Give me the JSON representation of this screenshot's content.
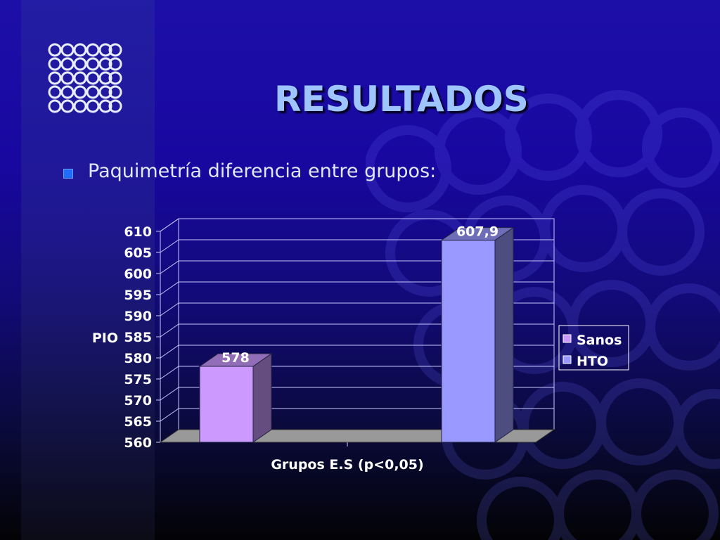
{
  "slide": {
    "title": "RESULTADOS",
    "bullet": "Paquimetría diferencia entre grupos:"
  },
  "colors": {
    "title": "#9fc5ff",
    "bullet": "#1f6dff",
    "sanos": "#cc99ff",
    "hto": "#9999ff",
    "floor": "#999999"
  },
  "chart_data": {
    "type": "bar",
    "style": "3d-column",
    "categories": [
      "Grupos  E.S (p<0,05)"
    ],
    "series": [
      {
        "name": "Sanos",
        "values": [
          578
        ],
        "data_label": "578",
        "color": "#cc99ff"
      },
      {
        "name": "HTO",
        "values": [
          607.9
        ],
        "data_label": "607,9",
        "color": "#9999ff"
      }
    ],
    "xlabel": "Grupos  E.S (p<0,05)",
    "ylabel": "PIO",
    "ylim": [
      560,
      610
    ],
    "yticks": [
      560,
      565,
      570,
      575,
      580,
      585,
      590,
      595,
      600,
      605,
      610
    ],
    "grid": true,
    "legend": "right"
  }
}
